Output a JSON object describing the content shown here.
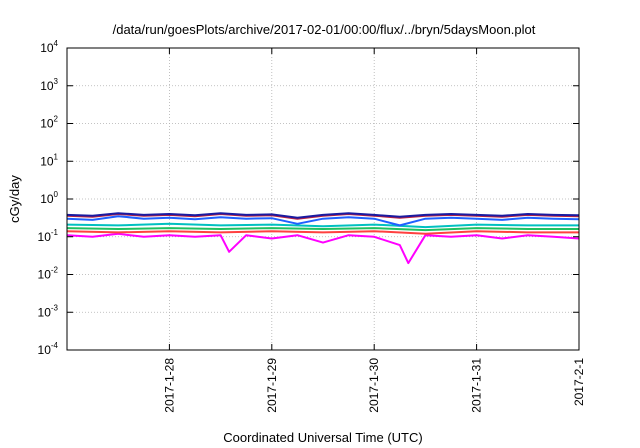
{
  "chart_data": {
    "type": "line",
    "title": "/data/run/goesPlots/archive/2017-02-01/00:00/flux/../bryn/5daysMoon.plot",
    "xlabel": "Coordinated Universal Time (UTC)",
    "ylabel": "cGy/day",
    "yscale": "log",
    "ylim": [
      0.0001,
      10000
    ],
    "xlim": [
      "2017-01-27T00:00",
      "2017-02-01T00:00"
    ],
    "grid": true,
    "y_ticks": [
      {
        "base": "10",
        "exp": "-4",
        "value": 0.0001
      },
      {
        "base": "10",
        "exp": "-3",
        "value": 0.001
      },
      {
        "base": "10",
        "exp": "-2",
        "value": 0.01
      },
      {
        "base": "10",
        "exp": "-1",
        "value": 0.1
      },
      {
        "base": "10",
        "exp": "0",
        "value": 1
      },
      {
        "base": "10",
        "exp": "1",
        "value": 10
      },
      {
        "base": "10",
        "exp": "2",
        "value": 100
      },
      {
        "base": "10",
        "exp": "3",
        "value": 1000
      },
      {
        "base": "10",
        "exp": "4",
        "value": 10000
      }
    ],
    "x_ticks": [
      {
        "label": "2017-1-28",
        "value": "2017-01-28T00:00"
      },
      {
        "label": "2017-1-29",
        "value": "2017-01-29T00:00"
      },
      {
        "label": "2017-1-30",
        "value": "2017-01-30T00:00"
      },
      {
        "label": "2017-1-31",
        "value": "2017-01-31T00:00"
      },
      {
        "label": "2017-2-1",
        "value": "2017-02-01T00:00"
      }
    ],
    "series": [
      {
        "color": "#ff00ff",
        "x": [
          "2017-01-27T00:00",
          "2017-01-27T06:00",
          "2017-01-27T12:00",
          "2017-01-27T18:00",
          "2017-01-28T00:00",
          "2017-01-28T06:00",
          "2017-01-28T12:00",
          "2017-01-28T14:00",
          "2017-01-28T18:00",
          "2017-01-29T00:00",
          "2017-01-29T06:00",
          "2017-01-29T12:00",
          "2017-01-29T18:00",
          "2017-01-30T00:00",
          "2017-01-30T06:00",
          "2017-01-30T08:00",
          "2017-01-30T12:00",
          "2017-01-30T18:00",
          "2017-01-31T00:00",
          "2017-01-31T06:00",
          "2017-01-31T12:00",
          "2017-01-31T18:00",
          "2017-02-01T00:00"
        ],
        "y": [
          0.11,
          0.1,
          0.12,
          0.1,
          0.11,
          0.1,
          0.11,
          0.04,
          0.11,
          0.09,
          0.11,
          0.07,
          0.11,
          0.1,
          0.06,
          0.02,
          0.11,
          0.1,
          0.11,
          0.09,
          0.11,
          0.1,
          0.09
        ]
      },
      {
        "color": "#ff4040",
        "x": [
          "2017-01-27T00:00",
          "2017-01-27T12:00",
          "2017-01-28T00:00",
          "2017-01-28T12:00",
          "2017-01-29T00:00",
          "2017-01-29T12:00",
          "2017-01-30T00:00",
          "2017-01-30T12:00",
          "2017-01-31T00:00",
          "2017-01-31T12:00",
          "2017-02-01T00:00"
        ],
        "y": [
          0.14,
          0.13,
          0.14,
          0.13,
          0.14,
          0.13,
          0.14,
          0.12,
          0.14,
          0.13,
          0.13
        ]
      },
      {
        "color": "#20c060",
        "x": [
          "2017-01-27T00:00",
          "2017-01-27T12:00",
          "2017-01-28T00:00",
          "2017-01-28T12:00",
          "2017-01-29T00:00",
          "2017-01-29T12:00",
          "2017-01-30T00:00",
          "2017-01-30T12:00",
          "2017-01-31T00:00",
          "2017-01-31T12:00",
          "2017-02-01T00:00"
        ],
        "y": [
          0.17,
          0.16,
          0.17,
          0.16,
          0.17,
          0.16,
          0.17,
          0.15,
          0.17,
          0.16,
          0.16
        ]
      },
      {
        "color": "#00c0c0",
        "x": [
          "2017-01-27T00:00",
          "2017-01-27T12:00",
          "2017-01-28T00:00",
          "2017-01-28T12:00",
          "2017-01-29T00:00",
          "2017-01-29T12:00",
          "2017-01-30T00:00",
          "2017-01-30T12:00",
          "2017-01-31T00:00",
          "2017-01-31T12:00",
          "2017-02-01T00:00"
        ],
        "y": [
          0.21,
          0.2,
          0.22,
          0.2,
          0.21,
          0.19,
          0.21,
          0.18,
          0.21,
          0.2,
          0.2
        ]
      },
      {
        "color": "#2060ff",
        "x": [
          "2017-01-27T00:00",
          "2017-01-27T06:00",
          "2017-01-27T12:00",
          "2017-01-27T18:00",
          "2017-01-28T00:00",
          "2017-01-28T06:00",
          "2017-01-28T12:00",
          "2017-01-28T18:00",
          "2017-01-29T00:00",
          "2017-01-29T06:00",
          "2017-01-29T12:00",
          "2017-01-29T18:00",
          "2017-01-30T00:00",
          "2017-01-30T06:00",
          "2017-01-30T12:00",
          "2017-01-30T18:00",
          "2017-01-31T00:00",
          "2017-01-31T06:00",
          "2017-01-31T12:00",
          "2017-01-31T18:00",
          "2017-02-01T00:00"
        ],
        "y": [
          0.3,
          0.28,
          0.35,
          0.3,
          0.32,
          0.29,
          0.33,
          0.3,
          0.31,
          0.22,
          0.3,
          0.33,
          0.3,
          0.2,
          0.3,
          0.32,
          0.3,
          0.28,
          0.32,
          0.3,
          0.29
        ]
      },
      {
        "color": "#c02040",
        "x": [
          "2017-01-27T00:00",
          "2017-01-27T06:00",
          "2017-01-27T12:00",
          "2017-01-27T18:00",
          "2017-01-28T00:00",
          "2017-01-28T06:00",
          "2017-01-28T12:00",
          "2017-01-28T18:00",
          "2017-01-29T00:00",
          "2017-01-29T06:00",
          "2017-01-29T12:00",
          "2017-01-29T18:00",
          "2017-01-30T00:00",
          "2017-01-30T06:00",
          "2017-01-30T12:00",
          "2017-01-30T18:00",
          "2017-01-31T00:00",
          "2017-01-31T06:00",
          "2017-01-31T12:00",
          "2017-01-31T18:00",
          "2017-02-01T00:00"
        ],
        "y": [
          0.36,
          0.34,
          0.4,
          0.36,
          0.38,
          0.35,
          0.4,
          0.36,
          0.37,
          0.3,
          0.36,
          0.4,
          0.36,
          0.32,
          0.36,
          0.38,
          0.36,
          0.34,
          0.38,
          0.36,
          0.35
        ]
      },
      {
        "color": "#1a1aa0",
        "x": [
          "2017-01-27T00:00",
          "2017-01-27T06:00",
          "2017-01-27T12:00",
          "2017-01-27T18:00",
          "2017-01-28T00:00",
          "2017-01-28T06:00",
          "2017-01-28T12:00",
          "2017-01-28T18:00",
          "2017-01-29T00:00",
          "2017-01-29T06:00",
          "2017-01-29T12:00",
          "2017-01-29T18:00",
          "2017-01-30T00:00",
          "2017-01-30T06:00",
          "2017-01-30T12:00",
          "2017-01-30T18:00",
          "2017-01-31T00:00",
          "2017-01-31T06:00",
          "2017-01-31T12:00",
          "2017-01-31T18:00",
          "2017-02-01T00:00"
        ],
        "y": [
          0.38,
          0.36,
          0.42,
          0.38,
          0.4,
          0.37,
          0.42,
          0.38,
          0.39,
          0.32,
          0.38,
          0.42,
          0.38,
          0.34,
          0.38,
          0.4,
          0.38,
          0.36,
          0.4,
          0.38,
          0.37
        ]
      }
    ]
  }
}
